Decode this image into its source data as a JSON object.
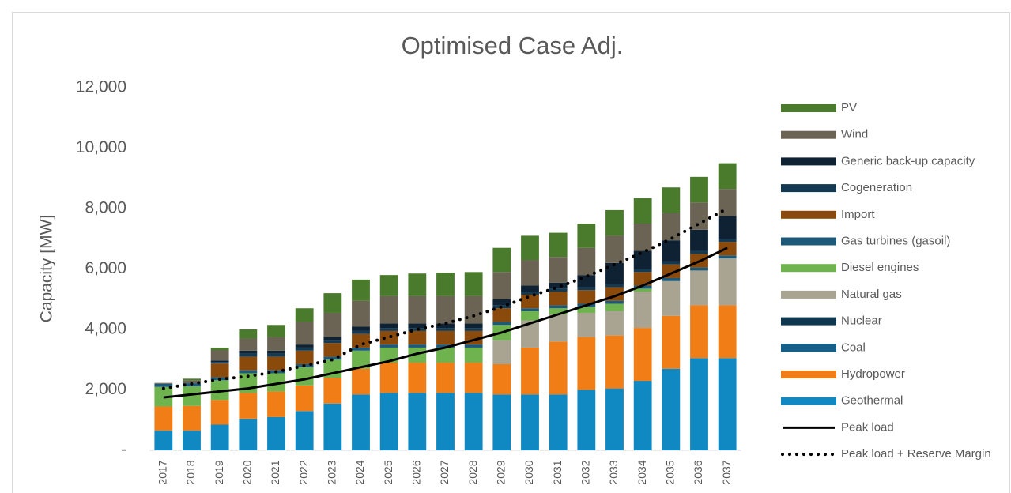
{
  "chart_data": {
    "type": "bar",
    "stacked": true,
    "title": "Optimised Case Adj.",
    "y_label": "Capacity [MW]",
    "categories": [
      "2017",
      "2018",
      "2019",
      "2020",
      "2021",
      "2022",
      "2023",
      "2024",
      "2025",
      "2026",
      "2027",
      "2028",
      "2029",
      "2030",
      "2031",
      "2032",
      "2033",
      "2034",
      "2035",
      "2036",
      "2037"
    ],
    "ylim": [
      0,
      12000
    ],
    "yticks": [
      {
        "value": 0,
        "label": "-"
      },
      {
        "value": 2000,
        "label": "2,000"
      },
      {
        "value": 4000,
        "label": "4,000"
      },
      {
        "value": 6000,
        "label": "6,000"
      },
      {
        "value": 8000,
        "label": "8,000"
      },
      {
        "value": 10000,
        "label": "10,000"
      },
      {
        "value": 12000,
        "label": "12,000"
      }
    ],
    "legend": "right",
    "series": [
      {
        "name": "Geothermal",
        "color": "#1089c2",
        "values": [
          650,
          650,
          850,
          1050,
          1100,
          1300,
          1550,
          1850,
          1900,
          1900,
          1900,
          1900,
          1850,
          1850,
          1850,
          2000,
          2050,
          2300,
          2700,
          3050,
          3050
        ]
      },
      {
        "name": "Hydropower",
        "color": "#f07d16",
        "values": [
          800,
          820,
          820,
          850,
          850,
          850,
          850,
          850,
          1000,
          1000,
          1000,
          1000,
          1000,
          1550,
          1750,
          1750,
          1750,
          1750,
          1750,
          1750,
          1750
        ]
      },
      {
        "name": "Coal",
        "color": "#14608a",
        "values": [
          0,
          0,
          0,
          0,
          0,
          0,
          0,
          0,
          0,
          0,
          0,
          0,
          0,
          0,
          0,
          0,
          0,
          0,
          0,
          0,
          0
        ]
      },
      {
        "name": "Nuclear",
        "color": "#0e3750",
        "values": [
          0,
          0,
          0,
          0,
          0,
          0,
          0,
          0,
          0,
          0,
          0,
          0,
          0,
          0,
          0,
          0,
          0,
          0,
          0,
          0,
          0
        ]
      },
      {
        "name": "Natural gas",
        "color": "#a8a491",
        "values": [
          0,
          0,
          0,
          0,
          0,
          0,
          0,
          0,
          0,
          0,
          0,
          0,
          800,
          900,
          900,
          800,
          800,
          1200,
          1150,
          1150,
          1550
        ]
      },
      {
        "name": "Diesel engines",
        "color": "#6eb34d",
        "values": [
          650,
          650,
          650,
          650,
          600,
          600,
          600,
          600,
          500,
          500,
          500,
          500,
          500,
          300,
          200,
          200,
          250,
          100,
          0,
          0,
          0
        ]
      },
      {
        "name": "Gas turbines (gasoil)",
        "color": "#1d5a7a",
        "values": [
          100,
          100,
          100,
          100,
          100,
          100,
          100,
          100,
          100,
          100,
          100,
          100,
          100,
          100,
          100,
          100,
          100,
          100,
          100,
          100,
          100
        ]
      },
      {
        "name": "Import",
        "color": "#8a4a0c",
        "values": [
          0,
          0,
          450,
          450,
          450,
          450,
          450,
          450,
          450,
          450,
          450,
          450,
          450,
          450,
          450,
          450,
          450,
          450,
          450,
          450,
          450
        ]
      },
      {
        "name": "Cogeneration",
        "color": "#133a52",
        "values": [
          0,
          0,
          50,
          100,
          100,
          100,
          100,
          100,
          100,
          100,
          100,
          100,
          100,
          100,
          100,
          100,
          100,
          100,
          100,
          100,
          100
        ]
      },
      {
        "name": "Generic back-up capacity",
        "color": "#0f2233",
        "values": [
          0,
          0,
          50,
          100,
          100,
          100,
          100,
          150,
          150,
          150,
          150,
          150,
          200,
          200,
          200,
          400,
          700,
          600,
          700,
          700,
          750
        ]
      },
      {
        "name": "Wind",
        "color": "#6b6455",
        "values": [
          30,
          100,
          350,
          400,
          450,
          750,
          800,
          850,
          900,
          900,
          900,
          900,
          900,
          850,
          850,
          900,
          900,
          900,
          900,
          900,
          900
        ]
      },
      {
        "name": "PV",
        "color": "#4a7a2c",
        "values": [
          0,
          50,
          80,
          300,
          400,
          450,
          650,
          700,
          700,
          750,
          780,
          800,
          800,
          800,
          800,
          800,
          850,
          850,
          850,
          850,
          850
        ]
      }
    ],
    "lines": [
      {
        "name": "Peak load",
        "color": "#000000",
        "style": "solid",
        "values": [
          1750,
          1850,
          1950,
          2050,
          2200,
          2350,
          2550,
          2750,
          2950,
          3200,
          3400,
          3650,
          3900,
          4200,
          4500,
          4800,
          5100,
          5450,
          5850,
          6250,
          6700
        ]
      },
      {
        "name": "Peak load + Reserve Margin",
        "color": "#000000",
        "style": "dotted",
        "values": [
          2050,
          2200,
          2350,
          2450,
          2600,
          2800,
          3000,
          3500,
          3750,
          4000,
          4200,
          4450,
          4750,
          5100,
          5400,
          5750,
          6150,
          6550,
          7000,
          7500,
          8000
        ]
      }
    ]
  }
}
